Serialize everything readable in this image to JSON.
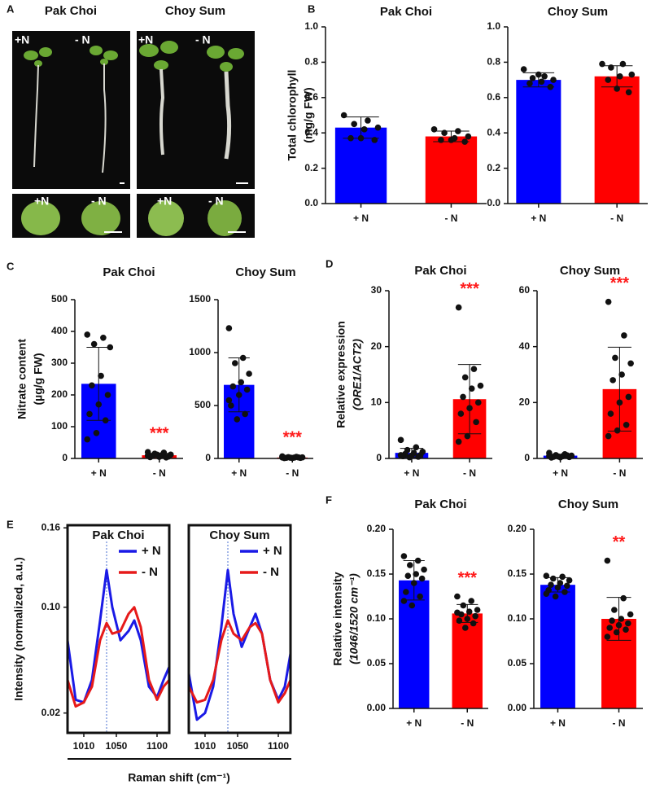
{
  "panel_a": {
    "label": "A",
    "groups": [
      {
        "title": "Pak Choi",
        "top_labels": [
          "+N",
          "- N"
        ],
        "bottom_labels": [
          "+N",
          "- N"
        ]
      },
      {
        "title": "Choy Sum",
        "top_labels": [
          "+N",
          "- N"
        ],
        "bottom_labels": [
          "+N",
          "- N"
        ]
      }
    ]
  },
  "chart_data": [
    {
      "type": "bar",
      "panel": "B",
      "title": "Pak Choi",
      "ylabel": [
        "Total chlorophyll",
        "(mg/g FW)"
      ],
      "categories": [
        "+ N",
        "- N"
      ],
      "values": [
        0.43,
        0.38
      ],
      "errors": [
        0.06,
        0.03
      ],
      "colors": [
        "#0000ff",
        "#ff0000"
      ],
      "points": [
        [
          0.5,
          0.47,
          0.45,
          0.43,
          0.42,
          0.37,
          0.36,
          0.37
        ],
        [
          0.42,
          0.41,
          0.4,
          0.38,
          0.37,
          0.36,
          0.35,
          0.36
        ]
      ],
      "ylim": [
        0,
        1
      ],
      "yticks": [
        {
          "value": 0,
          "label": "0.0"
        },
        0.2,
        0.4,
        0.6,
        0.8,
        {
          "value": 1,
          "label": "1.0"
        }
      ]
    },
    {
      "type": "bar",
      "title": "Choy Sum",
      "categories": [
        "+ N",
        "- N"
      ],
      "values": [
        0.7,
        0.72
      ],
      "errors": [
        0.04,
        0.06
      ],
      "colors": [
        "#0000ff",
        "#ff0000"
      ],
      "points": [
        [
          0.76,
          0.72,
          0.71,
          0.7,
          0.69,
          0.68,
          0.66,
          0.73
        ],
        [
          0.79,
          0.79,
          0.77,
          0.73,
          0.72,
          0.7,
          0.63,
          0.65
        ]
      ],
      "ylim": [
        0,
        1
      ],
      "yticks": [
        {
          "value": 0,
          "label": "0.0"
        },
        0.2,
        0.4,
        0.6,
        0.8,
        {
          "value": 1,
          "label": "1.0"
        }
      ]
    },
    {
      "type": "bar",
      "panel": "C",
      "title": "Pak Choi",
      "ylabel": [
        "Nitrate content",
        "(µg/g FW)"
      ],
      "categories": [
        "+ N",
        "- N"
      ],
      "values": [
        235,
        10
      ],
      "errors": [
        115,
        6
      ],
      "colors": [
        "#0000ff",
        "#ff0000"
      ],
      "points": [
        [
          390,
          380,
          360,
          350,
          260,
          230,
          200,
          170,
          140,
          120,
          80,
          60
        ],
        [
          20,
          18,
          15,
          12,
          10,
          8,
          6,
          5,
          4,
          3,
          12,
          9
        ]
      ],
      "significance": [
        null,
        "***"
      ],
      "ylim": [
        0,
        500
      ],
      "yticks": [
        0,
        100,
        200,
        300,
        400,
        500
      ]
    },
    {
      "type": "bar",
      "title": "Choy Sum",
      "categories": [
        "+ N",
        "- N"
      ],
      "values": [
        695,
        9
      ],
      "errors": [
        255,
        5
      ],
      "colors": [
        "#0000ff",
        "#ff0000"
      ],
      "points": [
        [
          1230,
          950,
          900,
          800,
          720,
          680,
          650,
          600,
          500,
          420,
          370,
          550
        ],
        [
          20,
          15,
          12,
          10,
          8,
          6,
          5,
          4,
          3,
          10,
          7,
          9
        ]
      ],
      "significance": [
        null,
        "***"
      ],
      "ylim": [
        0,
        1500
      ],
      "yticks": [
        0,
        500,
        1000,
        1500
      ]
    },
    {
      "type": "bar",
      "panel": "D",
      "title": "Pak Choi",
      "ylabel": [
        "Relative expression",
        "(ORE1/ACT2)"
      ],
      "categories": [
        "+ N",
        "- N"
      ],
      "values": [
        1,
        10.6
      ],
      "errors": [
        0.8,
        6.2
      ],
      "colors": [
        "#0000ff",
        "#ff0000"
      ],
      "points": [
        [
          3.3,
          2,
          1.5,
          1.2,
          1,
          0.8,
          0.6,
          0.5,
          0.4,
          0.3,
          0.2,
          0.6
        ],
        [
          27,
          16,
          14.5,
          13,
          12.5,
          11,
          10,
          9,
          8,
          6.5,
          4,
          3
        ]
      ],
      "significance": [
        null,
        "***"
      ],
      "ylim": [
        0,
        30
      ],
      "yticks": [
        0,
        10,
        20,
        30
      ]
    },
    {
      "type": "bar",
      "title": "Choy Sum",
      "categories": [
        "+ N",
        "- N"
      ],
      "values": [
        1,
        24.8
      ],
      "errors": [
        0.5,
        15
      ],
      "colors": [
        "#0000ff",
        "#ff0000"
      ],
      "points": [
        [
          2,
          1.5,
          1.2,
          1,
          0.8,
          0.6,
          0.5,
          0.4,
          0.3,
          1.1,
          0.7,
          0.9
        ],
        [
          56,
          44,
          36,
          34,
          30,
          28,
          22,
          20,
          16,
          12,
          10,
          8
        ]
      ],
      "significance": [
        null,
        "***"
      ],
      "ylim": [
        0,
        60
      ],
      "yticks": [
        0,
        20,
        40,
        60
      ]
    },
    {
      "type": "line",
      "panel": "E",
      "title": "Pak Choi",
      "ylabel": [
        "Intensity (normalized, a.u.)"
      ],
      "xlabel": "Raman shift (cm⁻¹)",
      "x": [
        990,
        1000,
        1010,
        1020,
        1030,
        1038,
        1045,
        1055,
        1065,
        1072,
        1080,
        1090,
        1100,
        1108,
        1115
      ],
      "series": [
        {
          "name": "+ N",
          "color": "#1a1ae6",
          "values": [
            0.075,
            0.03,
            0.028,
            0.045,
            0.09,
            0.128,
            0.1,
            0.075,
            0.082,
            0.09,
            0.075,
            0.04,
            0.032,
            0.045,
            0.055
          ]
        },
        {
          "name": "- N",
          "color": "#e61a1a",
          "values": [
            0.045,
            0.025,
            0.028,
            0.04,
            0.075,
            0.088,
            0.08,
            0.082,
            0.095,
            0.1,
            0.085,
            0.045,
            0.03,
            0.04,
            0.045
          ]
        }
      ],
      "reference_x": 1038,
      "xlim": [
        990,
        1115
      ],
      "xticks": [
        1010,
        1050,
        1100
      ],
      "ylim": [
        0.005,
        0.162
      ],
      "yticks": [
        0.02,
        {
          "value": 0.1,
          "label": "0.10"
        },
        0.16
      ]
    },
    {
      "type": "line",
      "title": "Choy Sum",
      "x": [
        990,
        1000,
        1010,
        1020,
        1030,
        1038,
        1045,
        1055,
        1065,
        1072,
        1080,
        1090,
        1100,
        1108,
        1115
      ],
      "series": [
        {
          "name": "+ N",
          "color": "#1a1ae6",
          "values": [
            0.05,
            0.015,
            0.02,
            0.04,
            0.085,
            0.128,
            0.095,
            0.07,
            0.085,
            0.095,
            0.08,
            0.045,
            0.03,
            0.04,
            0.065
          ]
        },
        {
          "name": "- N",
          "color": "#e61a1a",
          "values": [
            0.04,
            0.028,
            0.03,
            0.045,
            0.075,
            0.09,
            0.08,
            0.075,
            0.085,
            0.088,
            0.08,
            0.045,
            0.028,
            0.035,
            0.045
          ]
        }
      ],
      "reference_x": 1038,
      "xlim": [
        990,
        1115
      ],
      "xticks": [
        1010,
        1050,
        1100
      ],
      "ylim": [
        0.005,
        0.162
      ]
    },
    {
      "type": "bar",
      "panel": "F",
      "title": "Pak Choi",
      "ylabel": [
        "Relative intensity",
        "(1046/1520 cm⁻¹)"
      ],
      "categories": [
        "+ N",
        "- N"
      ],
      "values": [
        0.143,
        0.106
      ],
      "errors": [
        0.022,
        0.01
      ],
      "colors": [
        "#0000ff",
        "#ff0000"
      ],
      "points": [
        [
          0.17,
          0.165,
          0.16,
          0.155,
          0.15,
          0.148,
          0.145,
          0.14,
          0.13,
          0.125,
          0.115,
          0.12
        ],
        [
          0.125,
          0.12,
          0.115,
          0.11,
          0.108,
          0.105,
          0.103,
          0.1,
          0.098,
          0.095,
          0.09,
          0.107
        ]
      ],
      "significance": [
        null,
        "***"
      ],
      "ylim": [
        0,
        0.2
      ],
      "yticks": [
        {
          "value": 0,
          "label": "0.00"
        },
        {
          "value": 0.05,
          "label": "0.05"
        },
        {
          "value": 0.1,
          "label": "0.10"
        },
        {
          "value": 0.15,
          "label": "0.15"
        },
        {
          "value": 0.2,
          "label": "0.20"
        }
      ]
    },
    {
      "type": "bar",
      "title": "Choy Sum",
      "categories": [
        "+ N",
        "- N"
      ],
      "values": [
        0.138,
        0.1
      ],
      "errors": [
        0.008,
        0.024
      ],
      "colors": [
        "#0000ff",
        "#ff0000"
      ],
      "points": [
        [
          0.148,
          0.147,
          0.145,
          0.143,
          0.14,
          0.138,
          0.137,
          0.135,
          0.132,
          0.13,
          0.125,
          0.128
        ],
        [
          0.165,
          0.123,
          0.11,
          0.105,
          0.1,
          0.098,
          0.095,
          0.093,
          0.09,
          0.088,
          0.085,
          0.08
        ]
      ],
      "significance": [
        null,
        "**"
      ],
      "ylim": [
        0,
        0.2
      ],
      "yticks": [
        {
          "value": 0,
          "label": "0.00"
        },
        {
          "value": 0.05,
          "label": "0.05"
        },
        {
          "value": 0.1,
          "label": "0.10"
        },
        {
          "value": 0.15,
          "label": "0.15"
        },
        {
          "value": 0.2,
          "label": "0.20"
        }
      ]
    }
  ]
}
